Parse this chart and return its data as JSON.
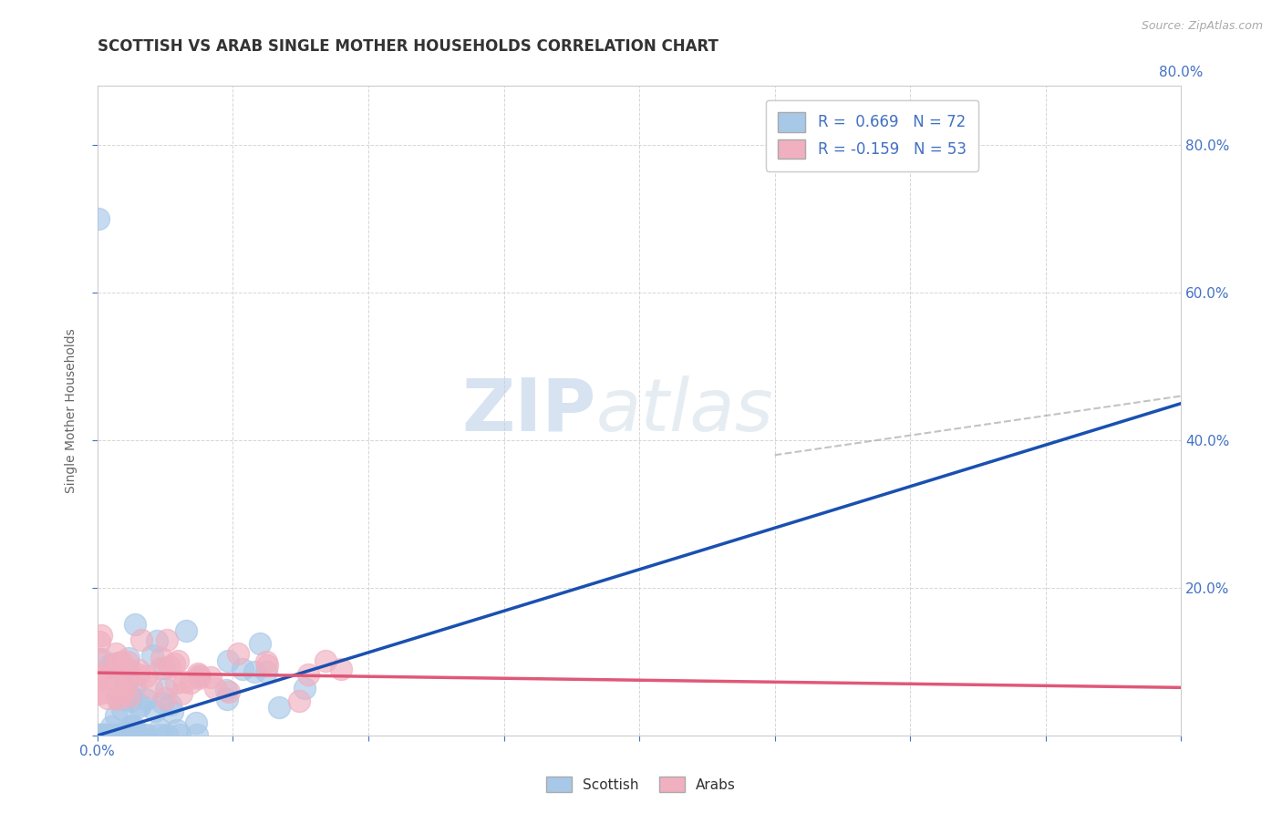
{
  "title": "SCOTTISH VS ARAB SINGLE MOTHER HOUSEHOLDS CORRELATION CHART",
  "source": "Source: ZipAtlas.com",
  "ylabel": "Single Mother Households",
  "legend_bottom": [
    "Scottish",
    "Arabs"
  ],
  "r_scottish": 0.669,
  "n_scottish": 72,
  "r_arab": -0.159,
  "n_arab": 53,
  "scottish_color": "#a8c8e8",
  "arab_color": "#f0b0c0",
  "scottish_line_color": "#1a50b0",
  "arab_line_color": "#e05878",
  "watermark_zip": "ZIP",
  "watermark_atlas": "atlas",
  "background_color": "#ffffff",
  "grid_color": "#cccccc",
  "axis_color": "#4472c4",
  "title_color": "#333333",
  "xlim": [
    0.0,
    0.8
  ],
  "ylim": [
    0.0,
    0.88
  ],
  "yticks": [
    0.0,
    0.2,
    0.4,
    0.6,
    0.8
  ],
  "xticks": [
    0.0,
    0.1,
    0.2,
    0.3,
    0.4,
    0.5,
    0.6,
    0.7,
    0.8
  ],
  "scottish_line_x0": 0.0,
  "scottish_line_y0": 0.0,
  "scottish_line_x1": 0.8,
  "scottish_line_y1": 0.45,
  "arab_line_x0": 0.0,
  "arab_line_y0": 0.085,
  "arab_line_x1": 0.8,
  "arab_line_y1": 0.065
}
